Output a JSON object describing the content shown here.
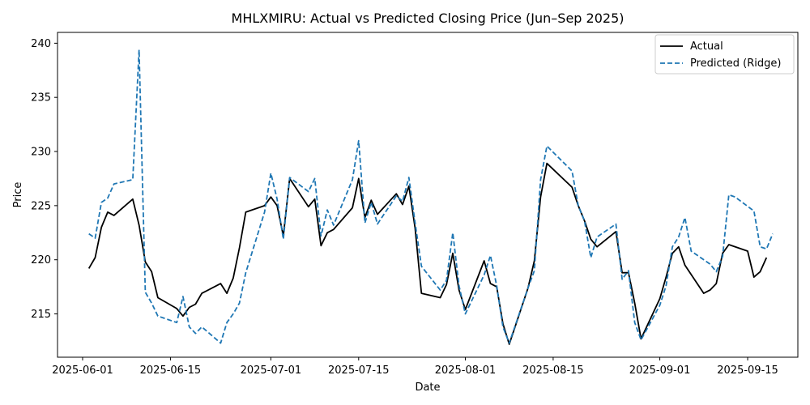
{
  "chart_data": {
    "type": "line",
    "title": "MHLXMIRU: Actual vs Predicted Closing Price (Jun–Sep 2025)",
    "xlabel": "Date",
    "ylabel": "Price",
    "xlim": [
      "2025-05-28",
      "2025-09-23"
    ],
    "ylim": [
      211,
      241
    ],
    "x_ticks": [
      "2025-06-01",
      "2025-06-15",
      "2025-07-01",
      "2025-07-15",
      "2025-08-01",
      "2025-08-15",
      "2025-09-01",
      "2025-09-15"
    ],
    "y_ticks": [
      215,
      220,
      225,
      230,
      235,
      240
    ],
    "legend_position": "top-right",
    "grid": false,
    "series": [
      {
        "name": "Actual",
        "color": "#000000",
        "style": "solid",
        "points": [
          [
            "2025-06-02",
            219.2
          ],
          [
            "2025-06-03",
            220.2
          ],
          [
            "2025-06-04",
            223.0
          ],
          [
            "2025-06-05",
            224.4
          ],
          [
            "2025-06-06",
            224.1
          ],
          [
            "2025-06-09",
            225.6
          ],
          [
            "2025-06-10",
            223.2
          ],
          [
            "2025-06-11",
            219.8
          ],
          [
            "2025-06-12",
            218.9
          ],
          [
            "2025-06-13",
            216.5
          ],
          [
            "2025-06-16",
            215.5
          ],
          [
            "2025-06-17",
            214.8
          ],
          [
            "2025-06-18",
            215.6
          ],
          [
            "2025-06-19",
            215.9
          ],
          [
            "2025-06-20",
            216.9
          ],
          [
            "2025-06-23",
            217.8
          ],
          [
            "2025-06-24",
            216.9
          ],
          [
            "2025-06-25",
            218.3
          ],
          [
            "2025-06-26",
            221.1
          ],
          [
            "2025-06-27",
            224.4
          ],
          [
            "2025-06-30",
            225.0
          ],
          [
            "2025-07-01",
            225.8
          ],
          [
            "2025-07-02",
            225.0
          ],
          [
            "2025-07-03",
            222.2
          ],
          [
            "2025-07-04",
            227.5
          ],
          [
            "2025-07-07",
            224.9
          ],
          [
            "2025-07-08",
            225.6
          ],
          [
            "2025-07-09",
            221.3
          ],
          [
            "2025-07-10",
            222.5
          ],
          [
            "2025-07-11",
            222.8
          ],
          [
            "2025-07-14",
            224.8
          ],
          [
            "2025-07-15",
            227.5
          ],
          [
            "2025-07-16",
            223.9
          ],
          [
            "2025-07-17",
            225.5
          ],
          [
            "2025-07-18",
            224.2
          ],
          [
            "2025-07-21",
            226.1
          ],
          [
            "2025-07-22",
            225.1
          ],
          [
            "2025-07-23",
            226.8
          ],
          [
            "2025-07-24",
            222.9
          ],
          [
            "2025-07-25",
            216.9
          ],
          [
            "2025-07-28",
            216.5
          ],
          [
            "2025-07-29",
            217.7
          ],
          [
            "2025-07-30",
            220.6
          ],
          [
            "2025-07-31",
            217.2
          ],
          [
            "2025-08-01",
            215.4
          ],
          [
            "2025-08-04",
            219.9
          ],
          [
            "2025-08-05",
            217.8
          ],
          [
            "2025-08-06",
            217.5
          ],
          [
            "2025-08-07",
            214.1
          ],
          [
            "2025-08-08",
            212.2
          ],
          [
            "2025-08-11",
            217.4
          ],
          [
            "2025-08-12",
            219.9
          ],
          [
            "2025-08-13",
            225.8
          ],
          [
            "2025-08-14",
            228.9
          ],
          [
            "2025-08-18",
            226.7
          ],
          [
            "2025-08-19",
            225.0
          ],
          [
            "2025-08-20",
            223.6
          ],
          [
            "2025-08-21",
            221.9
          ],
          [
            "2025-08-22",
            221.2
          ],
          [
            "2025-08-25",
            222.6
          ],
          [
            "2025-08-26",
            218.8
          ],
          [
            "2025-08-27",
            218.8
          ],
          [
            "2025-08-28",
            216.0
          ],
          [
            "2025-08-29",
            212.7
          ],
          [
            "2025-09-01",
            216.4
          ],
          [
            "2025-09-02",
            218.4
          ],
          [
            "2025-09-03",
            220.6
          ],
          [
            "2025-09-04",
            221.2
          ],
          [
            "2025-09-05",
            219.5
          ],
          [
            "2025-09-08",
            216.9
          ],
          [
            "2025-09-09",
            217.2
          ],
          [
            "2025-09-10",
            217.8
          ],
          [
            "2025-09-11",
            220.6
          ],
          [
            "2025-09-12",
            221.4
          ],
          [
            "2025-09-15",
            220.8
          ],
          [
            "2025-09-16",
            218.4
          ],
          [
            "2025-09-17",
            218.9
          ],
          [
            "2025-09-18",
            220.2
          ]
        ]
      },
      {
        "name": "Predicted (Ridge)",
        "color": "#1f77b4",
        "style": "dashed",
        "points": [
          [
            "2025-06-02",
            222.4
          ],
          [
            "2025-06-03",
            222.0
          ],
          [
            "2025-06-04",
            225.3
          ],
          [
            "2025-06-05",
            225.7
          ],
          [
            "2025-06-06",
            227.0
          ],
          [
            "2025-06-09",
            227.4
          ],
          [
            "2025-06-10",
            239.4
          ],
          [
            "2025-06-11",
            217.0
          ],
          [
            "2025-06-12",
            216.0
          ],
          [
            "2025-06-13",
            214.8
          ],
          [
            "2025-06-16",
            214.2
          ],
          [
            "2025-06-17",
            216.6
          ],
          [
            "2025-06-18",
            213.8
          ],
          [
            "2025-06-19",
            213.2
          ],
          [
            "2025-06-20",
            213.8
          ],
          [
            "2025-06-23",
            212.3
          ],
          [
            "2025-06-24",
            214.2
          ],
          [
            "2025-06-25",
            215.0
          ],
          [
            "2025-06-26",
            216.0
          ],
          [
            "2025-06-27",
            218.8
          ],
          [
            "2025-06-30",
            224.4
          ],
          [
            "2025-07-01",
            228.0
          ],
          [
            "2025-07-02",
            225.6
          ],
          [
            "2025-07-03",
            221.9
          ],
          [
            "2025-07-04",
            227.6
          ],
          [
            "2025-07-07",
            226.3
          ],
          [
            "2025-07-08",
            227.5
          ],
          [
            "2025-07-09",
            222.2
          ],
          [
            "2025-07-10",
            224.6
          ],
          [
            "2025-07-11",
            223.2
          ],
          [
            "2025-07-14",
            227.4
          ],
          [
            "2025-07-15",
            231.0
          ],
          [
            "2025-07-16",
            223.4
          ],
          [
            "2025-07-17",
            225.3
          ],
          [
            "2025-07-18",
            223.3
          ],
          [
            "2025-07-21",
            225.9
          ],
          [
            "2025-07-22",
            225.4
          ],
          [
            "2025-07-23",
            227.6
          ],
          [
            "2025-07-24",
            223.4
          ],
          [
            "2025-07-25",
            219.4
          ],
          [
            "2025-07-28",
            217.2
          ],
          [
            "2025-07-29",
            218.1
          ],
          [
            "2025-07-30",
            222.5
          ],
          [
            "2025-07-31",
            217.6
          ],
          [
            "2025-08-01",
            215.0
          ],
          [
            "2025-08-04",
            218.6
          ],
          [
            "2025-08-05",
            220.4
          ],
          [
            "2025-08-06",
            217.6
          ],
          [
            "2025-08-07",
            213.8
          ],
          [
            "2025-08-08",
            212.3
          ],
          [
            "2025-08-11",
            217.4
          ],
          [
            "2025-08-12",
            219.0
          ],
          [
            "2025-08-13",
            227.4
          ],
          [
            "2025-08-14",
            230.5
          ],
          [
            "2025-08-18",
            228.2
          ],
          [
            "2025-08-19",
            225.0
          ],
          [
            "2025-08-20",
            223.6
          ],
          [
            "2025-08-21",
            220.2
          ],
          [
            "2025-08-22",
            222.1
          ],
          [
            "2025-08-25",
            223.3
          ],
          [
            "2025-08-26",
            218.2
          ],
          [
            "2025-08-27",
            219.0
          ],
          [
            "2025-08-28",
            214.2
          ],
          [
            "2025-08-29",
            212.6
          ],
          [
            "2025-09-01",
            215.8
          ],
          [
            "2025-09-02",
            217.6
          ],
          [
            "2025-09-03",
            221.2
          ],
          [
            "2025-09-04",
            222.1
          ],
          [
            "2025-09-05",
            223.9
          ],
          [
            "2025-09-06",
            220.8
          ],
          [
            "2025-09-09",
            219.6
          ],
          [
            "2025-09-10",
            218.9
          ],
          [
            "2025-09-11",
            220.3
          ],
          [
            "2025-09-12",
            226.0
          ],
          [
            "2025-09-13",
            225.8
          ],
          [
            "2025-09-16",
            224.5
          ],
          [
            "2025-09-17",
            221.2
          ],
          [
            "2025-09-18",
            221.0
          ],
          [
            "2025-09-19",
            222.4
          ]
        ]
      }
    ]
  }
}
